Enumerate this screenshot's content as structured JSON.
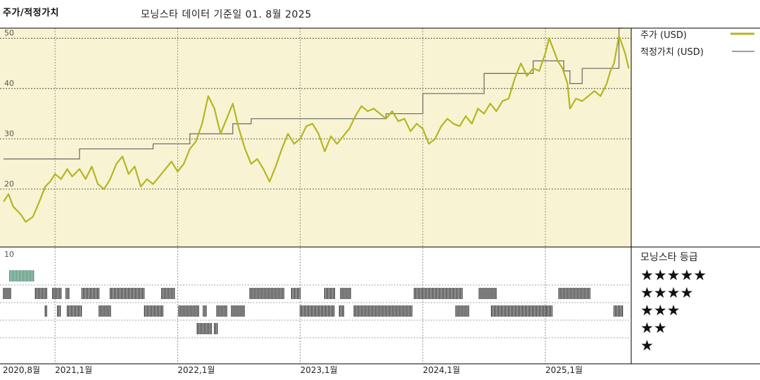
{
  "header": {
    "title": "주가/적정가치",
    "subtitle": "모닝스타 데이터 기준일 01. 8월 2025"
  },
  "chart_data": [
    {
      "type": "line",
      "title": "",
      "currency": "USD",
      "x_start": "2020-08",
      "x_end": "2025-08",
      "ylim": [
        8.5,
        52
      ],
      "y_ticks": [
        20,
        30,
        40,
        50
      ],
      "x_tick_labels": [
        "2020,8월",
        "2021,1월",
        "2022,1월",
        "2023,1월",
        "2024,1월",
        "2025,1월"
      ],
      "x_tick_positions": [
        2020.58,
        2021.0,
        2022.0,
        2023.0,
        2024.0,
        2025.0
      ],
      "legend": "right",
      "series": [
        {
          "name": "주가 (USD)",
          "color": "#b5b523",
          "points": [
            [
              2020.58,
              17.5
            ],
            [
              2020.62,
              19.0
            ],
            [
              2020.66,
              16.5
            ],
            [
              2020.72,
              15.0
            ],
            [
              2020.76,
              13.5
            ],
            [
              2020.82,
              14.5
            ],
            [
              2020.88,
              18.0
            ],
            [
              2020.92,
              20.5
            ],
            [
              2020.96,
              21.5
            ],
            [
              2021.0,
              23.0
            ],
            [
              2021.05,
              22.0
            ],
            [
              2021.1,
              24.0
            ],
            [
              2021.14,
              22.5
            ],
            [
              2021.2,
              24.0
            ],
            [
              2021.25,
              22.0
            ],
            [
              2021.3,
              24.5
            ],
            [
              2021.35,
              21.0
            ],
            [
              2021.4,
              20.0
            ],
            [
              2021.45,
              22.0
            ],
            [
              2021.5,
              25.0
            ],
            [
              2021.55,
              26.5
            ],
            [
              2021.6,
              23.0
            ],
            [
              2021.65,
              24.5
            ],
            [
              2021.7,
              20.5
            ],
            [
              2021.75,
              22.0
            ],
            [
              2021.8,
              21.0
            ],
            [
              2021.85,
              22.5
            ],
            [
              2021.9,
              24.0
            ],
            [
              2021.95,
              25.5
            ],
            [
              2022.0,
              23.5
            ],
            [
              2022.05,
              25.0
            ],
            [
              2022.1,
              28.0
            ],
            [
              2022.15,
              29.5
            ],
            [
              2022.2,
              33.0
            ],
            [
              2022.25,
              38.5
            ],
            [
              2022.3,
              36.0
            ],
            [
              2022.35,
              31.0
            ],
            [
              2022.4,
              34.0
            ],
            [
              2022.45,
              37.0
            ],
            [
              2022.5,
              32.0
            ],
            [
              2022.55,
              28.0
            ],
            [
              2022.6,
              25.0
            ],
            [
              2022.65,
              26.0
            ],
            [
              2022.7,
              24.0
            ],
            [
              2022.75,
              21.5
            ],
            [
              2022.8,
              24.5
            ],
            [
              2022.85,
              28.0
            ],
            [
              2022.9,
              31.0
            ],
            [
              2022.95,
              29.0
            ],
            [
              2023.0,
              30.0
            ],
            [
              2023.05,
              32.5
            ],
            [
              2023.1,
              33.0
            ],
            [
              2023.15,
              31.0
            ],
            [
              2023.2,
              27.5
            ],
            [
              2023.25,
              30.5
            ],
            [
              2023.3,
              29.0
            ],
            [
              2023.35,
              30.5
            ],
            [
              2023.4,
              32.0
            ],
            [
              2023.45,
              34.5
            ],
            [
              2023.5,
              36.5
            ],
            [
              2023.55,
              35.5
            ],
            [
              2023.6,
              36.0
            ],
            [
              2023.65,
              35.0
            ],
            [
              2023.7,
              34.0
            ],
            [
              2023.75,
              35.5
            ],
            [
              2023.8,
              33.5
            ],
            [
              2023.85,
              34.0
            ],
            [
              2023.9,
              31.5
            ],
            [
              2023.95,
              33.0
            ],
            [
              2024.0,
              32.0
            ],
            [
              2024.05,
              29.0
            ],
            [
              2024.1,
              30.0
            ],
            [
              2024.15,
              32.5
            ],
            [
              2024.2,
              34.0
            ],
            [
              2024.25,
              33.0
            ],
            [
              2024.3,
              32.5
            ],
            [
              2024.35,
              34.5
            ],
            [
              2024.4,
              33.0
            ],
            [
              2024.45,
              36.0
            ],
            [
              2024.5,
              35.0
            ],
            [
              2024.55,
              37.0
            ],
            [
              2024.6,
              35.5
            ],
            [
              2024.65,
              37.5
            ],
            [
              2024.7,
              38.0
            ],
            [
              2024.75,
              42.0
            ],
            [
              2024.8,
              45.0
            ],
            [
              2024.85,
              42.5
            ],
            [
              2024.9,
              44.0
            ],
            [
              2024.95,
              43.5
            ],
            [
              2025.0,
              47.0
            ],
            [
              2025.03,
              50.0
            ],
            [
              2025.07,
              47.5
            ],
            [
              2025.1,
              45.5
            ],
            [
              2025.14,
              44.0
            ],
            [
              2025.18,
              41.0
            ],
            [
              2025.2,
              36.0
            ],
            [
              2025.25,
              38.0
            ],
            [
              2025.3,
              37.5
            ],
            [
              2025.35,
              38.5
            ],
            [
              2025.4,
              39.5
            ],
            [
              2025.45,
              38.5
            ],
            [
              2025.5,
              41.0
            ],
            [
              2025.53,
              43.5
            ],
            [
              2025.56,
              45.0
            ],
            [
              2025.6,
              50.5
            ],
            [
              2025.65,
              47.0
            ],
            [
              2025.68,
              44.0
            ]
          ]
        },
        {
          "name": "적정가치 (USD)",
          "color": "#666666",
          "step": true,
          "points": [
            [
              2020.58,
              26.0
            ],
            [
              2021.2,
              28.0
            ],
            [
              2021.8,
              29.0
            ],
            [
              2022.1,
              31.0
            ],
            [
              2022.45,
              33.0
            ],
            [
              2022.6,
              34.0
            ],
            [
              2023.7,
              35.0
            ],
            [
              2024.0,
              39.0
            ],
            [
              2024.5,
              43.0
            ],
            [
              2024.9,
              45.5
            ],
            [
              2025.15,
              43.5
            ],
            [
              2025.2,
              41.0
            ],
            [
              2025.3,
              44.0
            ],
            [
              2025.6,
              52.0
            ]
          ]
        }
      ]
    },
    {
      "type": "rating_strip",
      "title": "모닝스타 등급",
      "rating_labels": [
        "★★★★★",
        "★★★★",
        "★★★",
        "★★",
        "★"
      ],
      "y_tick": "10",
      "periods": [
        {
          "stars": 5,
          "from": 2020.63,
          "to": 2020.83
        },
        {
          "stars": 4,
          "from": 2020.58,
          "to": 2020.64
        },
        {
          "stars": 4,
          "from": 2020.84,
          "to": 2020.94
        },
        {
          "stars": 4,
          "from": 2020.98,
          "to": 2021.05
        },
        {
          "stars": 4,
          "from": 2021.09,
          "to": 2021.12
        },
        {
          "stars": 4,
          "from": 2021.22,
          "to": 2021.36
        },
        {
          "stars": 4,
          "from": 2021.45,
          "to": 2021.73
        },
        {
          "stars": 4,
          "from": 2021.87,
          "to": 2021.98
        },
        {
          "stars": 4,
          "from": 2022.59,
          "to": 2022.87
        },
        {
          "stars": 4,
          "from": 2022.93,
          "to": 2023.0
        },
        {
          "stars": 4,
          "from": 2023.2,
          "to": 2023.29
        },
        {
          "stars": 4,
          "from": 2023.33,
          "to": 2023.42
        },
        {
          "stars": 4,
          "from": 2023.93,
          "to": 2024.33
        },
        {
          "stars": 4,
          "from": 2024.46,
          "to": 2024.6
        },
        {
          "stars": 4,
          "from": 2025.11,
          "to": 2025.37
        },
        {
          "stars": 3,
          "from": 2020.92,
          "to": 2020.94
        },
        {
          "stars": 3,
          "from": 2021.02,
          "to": 2021.05
        },
        {
          "stars": 3,
          "from": 2021.1,
          "to": 2021.22
        },
        {
          "stars": 3,
          "from": 2021.36,
          "to": 2021.46
        },
        {
          "stars": 3,
          "from": 2021.73,
          "to": 2021.88
        },
        {
          "stars": 3,
          "from": 2022.01,
          "to": 2022.18
        },
        {
          "stars": 3,
          "from": 2022.21,
          "to": 2022.24
        },
        {
          "stars": 3,
          "from": 2022.32,
          "to": 2022.41
        },
        {
          "stars": 3,
          "from": 2022.44,
          "to": 2022.55
        },
        {
          "stars": 3,
          "from": 2023.0,
          "to": 2023.28
        },
        {
          "stars": 3,
          "from": 2023.32,
          "to": 2023.36
        },
        {
          "stars": 3,
          "from": 2023.44,
          "to": 2023.92
        },
        {
          "stars": 3,
          "from": 2024.27,
          "to": 2024.38
        },
        {
          "stars": 3,
          "from": 2024.56,
          "to": 2025.06
        },
        {
          "stars": 3,
          "from": 2025.56,
          "to": 2025.63
        },
        {
          "stars": 2,
          "from": 2022.16,
          "to": 2022.28
        },
        {
          "stars": 2,
          "from": 2022.3,
          "to": 2022.33
        }
      ]
    }
  ]
}
